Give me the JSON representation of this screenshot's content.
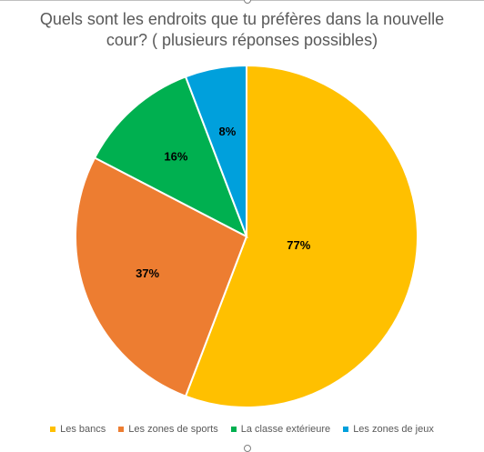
{
  "chart_data": {
    "type": "pie",
    "title": "Quels sont les endroits que tu préfères dans la nouvelle cour? ( plusieurs réponses possibles)",
    "categories": [
      "Les bancs",
      "Les zones de sports",
      "La classe extérieure",
      "Les zones de jeux"
    ],
    "values": [
      77,
      37,
      16,
      8
    ],
    "labels": [
      "77%",
      "37%",
      "16%",
      "8%"
    ],
    "colors": [
      "#FFC000",
      "#ED7D31",
      "#00B050",
      "#00A0DC"
    ],
    "legend_position": "bottom"
  }
}
